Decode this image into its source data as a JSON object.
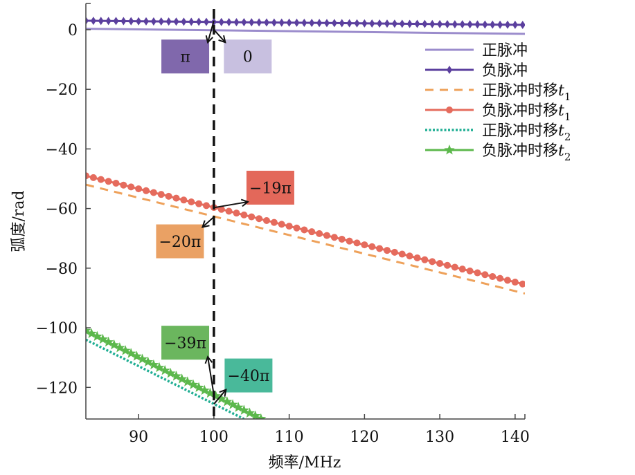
{
  "chart_data": {
    "type": "line",
    "title": "",
    "xlabel": "频率/MHz",
    "ylabel": "弧度/rad",
    "xlim": [
      83,
      141.3
    ],
    "ylim": [
      -130.6,
      8.8
    ],
    "xticks": [
      90,
      100,
      110,
      120,
      130,
      140
    ],
    "yticks": [
      0,
      -20,
      -40,
      -60,
      -80,
      -100,
      -120
    ],
    "grid": false,
    "legend_position": "top-right",
    "vline": {
      "x": 100,
      "style": "dashed",
      "color": "#111111"
    },
    "series": [
      {
        "name": "正脉冲",
        "subscript": "",
        "color": "#9b8ccc",
        "style": "solid",
        "marker": "none",
        "x": [
          83,
          141.3
        ],
        "y": [
          0.3,
          -1.4
        ]
      },
      {
        "name": "负脉冲",
        "subscript": "",
        "color": "#5b3f9e",
        "style": "solid",
        "marker": "diamond",
        "x": [
          83,
          141.3
        ],
        "y": [
          3.0,
          1.6
        ]
      },
      {
        "name": "正脉冲时移t",
        "subscript": "1",
        "color": "#eea15a",
        "style": "dashed",
        "marker": "none",
        "x": [
          83,
          141.3
        ],
        "y": [
          -52.0,
          -88.5
        ]
      },
      {
        "name": "负脉冲时移t",
        "subscript": "1",
        "color": "#e56b5d",
        "style": "solid",
        "marker": "circle",
        "x": [
          83,
          141.3
        ],
        "y": [
          -49.0,
          -85.5
        ]
      },
      {
        "name": "正脉冲时移t",
        "subscript": "2",
        "color": "#1fae93",
        "style": "dotted",
        "marker": "none",
        "x": [
          83,
          104.0
        ],
        "y": [
          -104.0,
          -130.6
        ]
      },
      {
        "name": "负脉冲时移t",
        "subscript": "2",
        "color": "#5cb84c",
        "style": "solid",
        "marker": "star",
        "x": [
          83,
          106.3
        ],
        "y": [
          -101.0,
          -130.6
        ]
      }
    ],
    "annotations": [
      {
        "text": "π",
        "color": "#8068ac",
        "at": [
          100,
          3.0
        ],
        "box_at": [
          96.2,
          -9.0
        ]
      },
      {
        "text": "0",
        "color": "#c8c0e0",
        "at": [
          100,
          0.0
        ],
        "box_at": [
          104.5,
          -9.0
        ]
      },
      {
        "text": "−19π",
        "color": "#e3685a",
        "at": [
          100,
          -59.7
        ],
        "box_at": [
          107.5,
          -53.0
        ]
      },
      {
        "text": "−20π",
        "color": "#eaa164",
        "at": [
          100,
          -62.8
        ],
        "box_at": [
          95.5,
          -71.0
        ]
      },
      {
        "text": "−39π",
        "color": "#6bb65e",
        "at": [
          100,
          -122.5
        ],
        "box_at": [
          96.2,
          -105.0
        ]
      },
      {
        "text": "−40π",
        "color": "#49b99a",
        "at": [
          100,
          -125.6
        ],
        "box_at": [
          104.6,
          -116.0
        ]
      }
    ]
  }
}
